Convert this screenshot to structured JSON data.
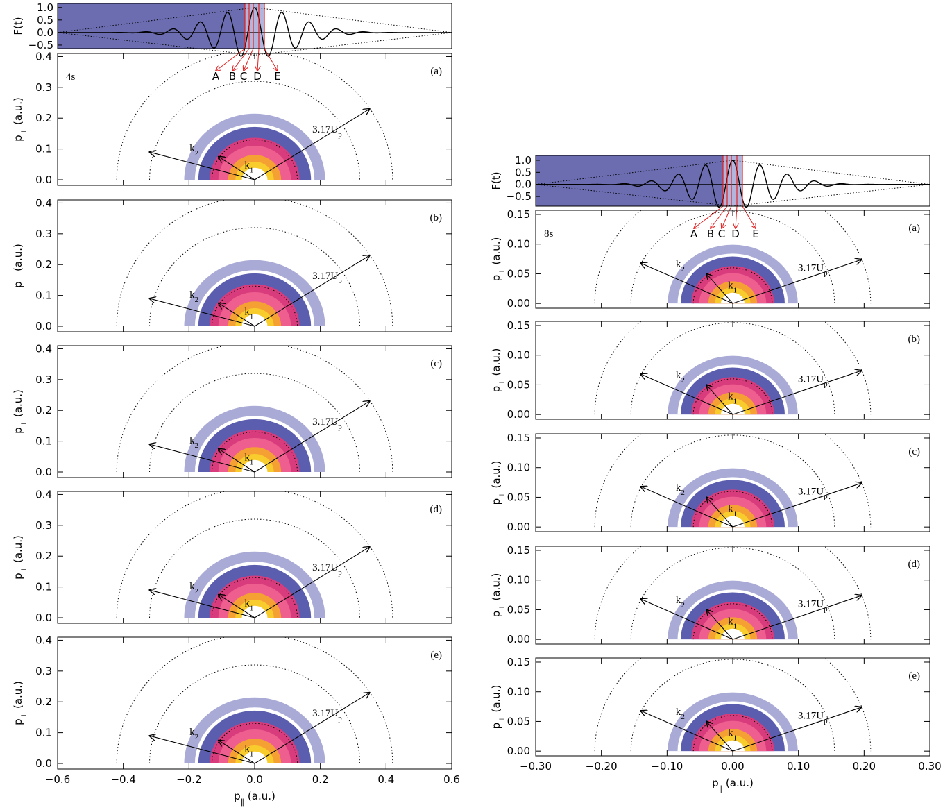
{
  "chart_data": [
    {
      "type": "contour",
      "label": "4s",
      "pulse": {
        "y_label": "F(t)",
        "ylim": [
          -0.64,
          1.16
        ],
        "yticks": [
          {
            "value": 1,
            "label": "1.0"
          },
          0.5,
          {
            "value": 0,
            "label": "0.0"
          },
          {
            "value": -0.5,
            "label": "−0.5"
          }
        ],
        "markers": [
          "A",
          "B",
          "C",
          "D",
          "E"
        ]
      },
      "panels": [
        "(a)",
        "(b)",
        "(c)",
        "(d)",
        "(e)"
      ],
      "xlim": [
        -0.6,
        0.6
      ],
      "xticks": [
        {
          "value": -0.6,
          "label": "−0.6"
        },
        {
          "value": -0.4,
          "label": "−0.4"
        },
        {
          "value": -0.2,
          "label": "−0.2"
        },
        {
          "value": 0,
          "label": "0.0"
        },
        0.2,
        0.4,
        0.6
      ],
      "ylim": [
        -0.018,
        0.41
      ],
      "yticks": [
        {
          "value": 0,
          "label": "0.0"
        },
        0.1,
        0.2,
        0.3,
        0.4
      ],
      "x_label": [
        "p",
        "∥",
        " (a.u.)"
      ],
      "y_label": [
        "p",
        "⊥",
        " (a.u.)"
      ],
      "annotations": {
        "cutoff": [
          "3.17U",
          "p"
        ],
        "k2": [
          "k",
          "2"
        ],
        "k1": [
          "k",
          "1"
        ]
      }
    },
    {
      "type": "contour",
      "label": "8s",
      "pulse": {
        "y_label": "F(t)",
        "ylim": [
          -0.9,
          1.2
        ],
        "yticks": [
          {
            "value": 1,
            "label": "1.0"
          },
          0.5,
          {
            "value": 0,
            "label": "0.0"
          },
          {
            "value": -0.5,
            "label": "−0.5"
          }
        ],
        "markers": [
          "A",
          "B",
          "C",
          "D",
          "E"
        ]
      },
      "panels": [
        "(a)",
        "(b)",
        "(c)",
        "(d)",
        "(e)"
      ],
      "xlim": [
        -0.3,
        0.3
      ],
      "xticks": [
        {
          "value": -0.3,
          "label": "−0.30"
        },
        {
          "value": -0.2,
          "label": "−0.20"
        },
        {
          "value": -0.1,
          "label": "−0.10"
        },
        {
          "value": 0,
          "label": "0.00"
        },
        {
          "value": 0.1,
          "label": "0.10"
        },
        {
          "value": 0.2,
          "label": "0.20"
        },
        {
          "value": 0.3,
          "label": "0.30"
        }
      ],
      "ylim": [
        -0.008,
        0.157
      ],
      "yticks": [
        {
          "value": 0,
          "label": "0.00"
        },
        0.05,
        {
          "value": 0.1,
          "label": "0.10"
        },
        0.15
      ],
      "x_label": [
        "p",
        "∥",
        " (a.u.)"
      ],
      "y_label": [
        "p",
        "⊥",
        " (a.u.)"
      ],
      "annotations": {
        "cutoff": [
          "3.17U",
          "p"
        ],
        "k2": [
          "k",
          "2"
        ],
        "k1": [
          "k",
          "1"
        ]
      }
    }
  ]
}
